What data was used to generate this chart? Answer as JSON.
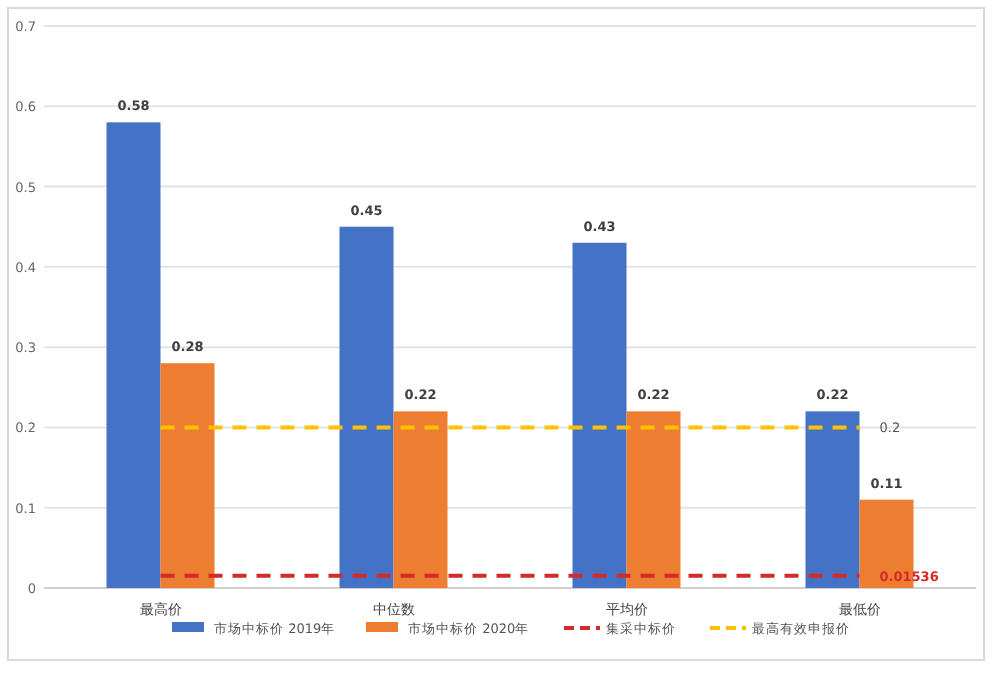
{
  "chart_data": {
    "type": "bar",
    "categories": [
      "最高价",
      "中位数",
      "平均价",
      "最低价"
    ],
    "series": [
      {
        "name": "市场中标价 2019年",
        "color": "#4472c4",
        "values": [
          0.58,
          0.45,
          0.43,
          0.22
        ],
        "value_labels": [
          "0.58",
          "0.45",
          "0.43",
          "0.22"
        ]
      },
      {
        "name": "市场中标价 2020年",
        "color": "#ed7d31",
        "values": [
          0.28,
          0.22,
          0.22,
          0.11
        ],
        "value_labels": [
          "0.28",
          "0.22",
          "0.22",
          "0.11"
        ]
      },
      {
        "name": "集采中标价",
        "type": "line",
        "color": "#d42a2a",
        "line_style": "dashed",
        "values": [
          0.01536,
          0.01536,
          0.01536,
          0.01536
        ],
        "value_labels": [
          null,
          null,
          null,
          "0.01536"
        ]
      },
      {
        "name": "最高有效申报价",
        "type": "line",
        "color": "#ffc000",
        "line_style": "dashed",
        "values": [
          0.2,
          0.2,
          0.2,
          0.2
        ],
        "value_labels": [
          null,
          null,
          null,
          "0.2"
        ]
      }
    ],
    "ylim": [
      0,
      0.7
    ],
    "yticks": [
      0,
      0.1,
      0.2,
      0.3,
      0.4,
      0.5,
      0.6,
      0.7
    ],
    "grid": "y",
    "legend": "bottom",
    "marker": "none"
  }
}
